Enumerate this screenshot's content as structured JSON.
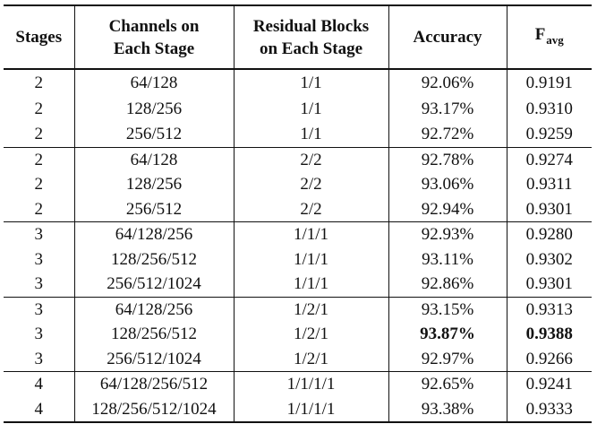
{
  "headers": {
    "stages": "Stages",
    "channels_line1": "Channels on",
    "channels_line2": "Each Stage",
    "blocks_line1": "Residual Blocks",
    "blocks_line2": "on Each Stage",
    "accuracy": "Accuracy",
    "favg_main": "F",
    "favg_sub": "avg"
  },
  "groups": [
    {
      "rows": [
        {
          "stages": "2",
          "channels": "64/128",
          "blocks": "1/1",
          "accuracy": "92.06%",
          "favg": "0.9191"
        },
        {
          "stages": "2",
          "channels": "128/256",
          "blocks": "1/1",
          "accuracy": "93.17%",
          "favg": "0.9310"
        },
        {
          "stages": "2",
          "channels": "256/512",
          "blocks": "1/1",
          "accuracy": "92.72%",
          "favg": "0.9259"
        }
      ]
    },
    {
      "rows": [
        {
          "stages": "2",
          "channels": "64/128",
          "blocks": "2/2",
          "accuracy": "92.78%",
          "favg": "0.9274"
        },
        {
          "stages": "2",
          "channels": "128/256",
          "blocks": "2/2",
          "accuracy": "93.06%",
          "favg": "0.9311"
        },
        {
          "stages": "2",
          "channels": "256/512",
          "blocks": "2/2",
          "accuracy": "92.94%",
          "favg": "0.9301"
        }
      ]
    },
    {
      "rows": [
        {
          "stages": "3",
          "channels": "64/128/256",
          "blocks": "1/1/1",
          "accuracy": "92.93%",
          "favg": "0.9280"
        },
        {
          "stages": "3",
          "channels": "128/256/512",
          "blocks": "1/1/1",
          "accuracy": "93.11%",
          "favg": "0.9302"
        },
        {
          "stages": "3",
          "channels": "256/512/1024",
          "blocks": "1/1/1",
          "accuracy": "92.86%",
          "favg": "0.9301"
        }
      ]
    },
    {
      "rows": [
        {
          "stages": "3",
          "channels": "64/128/256",
          "blocks": "1/2/1",
          "accuracy": "93.15%",
          "favg": "0.9313"
        },
        {
          "stages": "3",
          "channels": "128/256/512",
          "blocks": "1/2/1",
          "accuracy": "93.87%",
          "favg": "0.9388",
          "best": true
        },
        {
          "stages": "3",
          "channels": "256/512/1024",
          "blocks": "1/2/1",
          "accuracy": "92.97%",
          "favg": "0.9266"
        }
      ]
    },
    {
      "rows": [
        {
          "stages": "4",
          "channels": "64/128/256/512",
          "blocks": "1/1/1/1",
          "accuracy": "92.65%",
          "favg": "0.9241"
        },
        {
          "stages": "4",
          "channels": "128/256/512/1024",
          "blocks": "1/1/1/1",
          "accuracy": "93.38%",
          "favg": "0.9333"
        }
      ]
    }
  ]
}
